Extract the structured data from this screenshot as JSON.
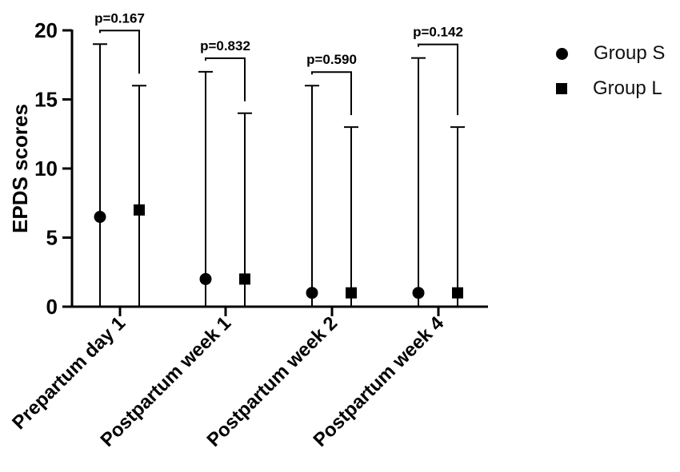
{
  "chart_data": {
    "type": "scatter",
    "title": "",
    "xlabel": "",
    "ylabel": "EPDS scores",
    "ylim": [
      0,
      20
    ],
    "yticks": [
      0,
      5,
      10,
      15,
      20
    ],
    "categories": [
      "Prepartum day 1",
      "Postpartum week 1",
      "Postpartum week 2",
      "Postpartum week 4"
    ],
    "series": [
      {
        "name": "Group S",
        "marker": "circle",
        "values": [
          6.5,
          2,
          1,
          1
        ],
        "lower": [
          0,
          0,
          0,
          0
        ],
        "upper": [
          19,
          17,
          16,
          18
        ]
      },
      {
        "name": "Group L",
        "marker": "square",
        "values": [
          7,
          2,
          1,
          1
        ],
        "lower": [
          0,
          0,
          0,
          0
        ],
        "upper": [
          16,
          14,
          13,
          13
        ]
      }
    ],
    "annotations": [
      "p=0.167",
      "p=0.832",
      "p=0.590",
      "p=0.142"
    ],
    "grid": false,
    "legend_position": "right"
  },
  "legend": {
    "items": [
      {
        "label": "Group S",
        "marker": "circle"
      },
      {
        "label": "Group L",
        "marker": "square"
      }
    ]
  },
  "colors": {
    "ink": "#000000",
    "background": "#ffffff"
  }
}
